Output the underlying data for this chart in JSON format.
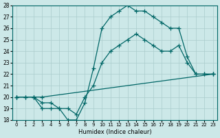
{
  "xlabel": "Humidex (Indice chaleur)",
  "xlim": [
    -0.5,
    23.5
  ],
  "ylim": [
    18,
    28
  ],
  "xticks": [
    0,
    1,
    2,
    3,
    4,
    5,
    6,
    7,
    8,
    9,
    10,
    11,
    12,
    13,
    14,
    15,
    16,
    17,
    18,
    19,
    20,
    21,
    22,
    23
  ],
  "yticks": [
    18,
    19,
    20,
    21,
    22,
    23,
    24,
    25,
    26,
    27,
    28
  ],
  "bg_color": "#cce8e8",
  "grid_color": "#aacccc",
  "line_color": "#006666",
  "line1_x": [
    0,
    1,
    2,
    3,
    4,
    5,
    6,
    7,
    8,
    9,
    10,
    11,
    12,
    13,
    14,
    15,
    16,
    17,
    18,
    19,
    20,
    21,
    22,
    23
  ],
  "line1_y": [
    20,
    20,
    20,
    19,
    19,
    19,
    18,
    18,
    19.5,
    22.5,
    26,
    27,
    27.5,
    28,
    27.5,
    27.5,
    27,
    26.5,
    26,
    26,
    23.5,
    22,
    22,
    22
  ],
  "line2_x": [
    0,
    1,
    2,
    3,
    4,
    5,
    6,
    7,
    8,
    9,
    10,
    11,
    12,
    13,
    14,
    15,
    16,
    17,
    18,
    19,
    20,
    21,
    22,
    23
  ],
  "line2_y": [
    20,
    20,
    20,
    19.5,
    19.5,
    19,
    19,
    18.5,
    20,
    21,
    23,
    24,
    24.5,
    25,
    25.5,
    25,
    24.5,
    24,
    24,
    24.5,
    23,
    22,
    22,
    22
  ],
  "line3_x": [
    0,
    2,
    3,
    23
  ],
  "line3_y": [
    20,
    20,
    20,
    22
  ]
}
